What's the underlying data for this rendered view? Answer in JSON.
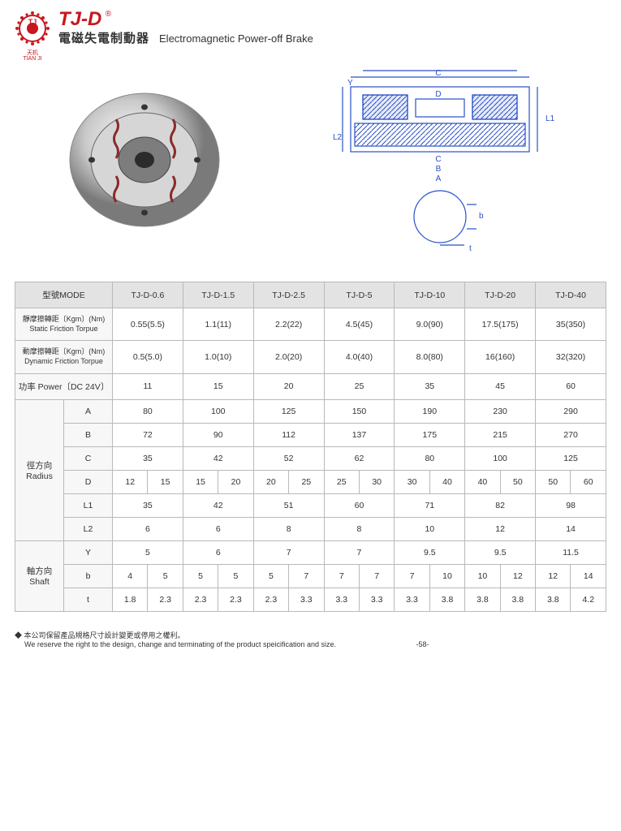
{
  "header": {
    "brand_cn": "天机",
    "brand_en": "TIAN JI",
    "model": "TJ-D",
    "registered": "®",
    "subtitle_cn": "電磁失電制動器",
    "subtitle_en": "Electromagnetic Power-off Brake"
  },
  "diagram_labels": {
    "A": "A",
    "B": "B",
    "C": "C",
    "D": "D",
    "L1": "L1",
    "L2": "L2",
    "Y": "Y",
    "b": "b",
    "t": "t"
  },
  "table": {
    "mode_label": "型號MODE",
    "models": [
      "TJ-D-0.6",
      "TJ-D-1.5",
      "TJ-D-2.5",
      "TJ-D-5",
      "TJ-D-10",
      "TJ-D-20",
      "TJ-D-40"
    ],
    "rows_single": [
      {
        "label_cn": "靜摩擦轉距〔Kgm〕(Nm)",
        "label_en": "Static Friction Torpue",
        "vals": [
          "0.55(5.5)",
          "1.1(11)",
          "2.2(22)",
          "4.5(45)",
          "9.0(90)",
          "17.5(175)",
          "35(350)"
        ]
      },
      {
        "label_cn": "動摩擦轉距〔Kgm〕(Nm)",
        "label_en": "Dynamic Friction Torpue",
        "vals": [
          "0.5(5.0)",
          "1.0(10)",
          "2.0(20)",
          "4.0(40)",
          "8.0(80)",
          "16(160)",
          "32(320)"
        ]
      },
      {
        "label_cn": "功率 Power〔DC 24V〕",
        "label_en": "",
        "vals": [
          "11",
          "15",
          "20",
          "25",
          "35",
          "45",
          "60"
        ]
      }
    ],
    "radius_label_cn": "徑方向",
    "radius_label_en": "Radius",
    "radius_rows": [
      {
        "k": "A",
        "vals": [
          "80",
          "100",
          "125",
          "150",
          "190",
          "230",
          "290"
        ],
        "split": false
      },
      {
        "k": "B",
        "vals": [
          "72",
          "90",
          "112",
          "137",
          "175",
          "215",
          "270"
        ],
        "split": false
      },
      {
        "k": "C",
        "vals": [
          "35",
          "42",
          "52",
          "62",
          "80",
          "100",
          "125"
        ],
        "split": false
      },
      {
        "k": "D",
        "vals": [
          [
            "12",
            "15"
          ],
          [
            "15",
            "20"
          ],
          [
            "20",
            "25"
          ],
          [
            "25",
            "30"
          ],
          [
            "30",
            "40"
          ],
          [
            "40",
            "50"
          ],
          [
            "50",
            "60"
          ]
        ],
        "split": true
      },
      {
        "k": "L1",
        "vals": [
          "35",
          "42",
          "51",
          "60",
          "71",
          "82",
          "98"
        ],
        "split": false
      },
      {
        "k": "L2",
        "vals": [
          "6",
          "6",
          "8",
          "8",
          "10",
          "12",
          "14"
        ],
        "split": false
      }
    ],
    "shaft_label_cn": "軸方向",
    "shaft_label_en": "Shaft",
    "shaft_rows": [
      {
        "k": "Y",
        "vals": [
          "5",
          "6",
          "7",
          "7",
          "9.5",
          "9.5",
          "11.5"
        ],
        "split": false
      },
      {
        "k": "b",
        "vals": [
          [
            "4",
            "5"
          ],
          [
            "5",
            "5"
          ],
          [
            "5",
            "7"
          ],
          [
            "7",
            "7"
          ],
          [
            "7",
            "10"
          ],
          [
            "10",
            "12"
          ],
          [
            "12",
            "14"
          ]
        ],
        "split": true
      },
      {
        "k": "t",
        "vals": [
          [
            "1.8",
            "2.3"
          ],
          [
            "2.3",
            "2.3"
          ],
          [
            "2.3",
            "3.3"
          ],
          [
            "3.3",
            "3.3"
          ],
          [
            "3.3",
            "3.8"
          ],
          [
            "3.8",
            "3.8"
          ],
          [
            "3.8",
            "4.2"
          ]
        ],
        "split": true
      }
    ]
  },
  "footer": {
    "note_cn": "本公司保留產品規格尺寸設計變更或停用之權利。",
    "note_en": "We reserve the right to the design, change and terminating of the product speicification and size.",
    "page": "-58-"
  },
  "colors": {
    "brand_red": "#c8171e",
    "table_border": "#b9b9b9",
    "header_bg": "#e3e3e3",
    "diagram_blue": "#2a4fc7",
    "spring_red": "#8a2a2a"
  }
}
